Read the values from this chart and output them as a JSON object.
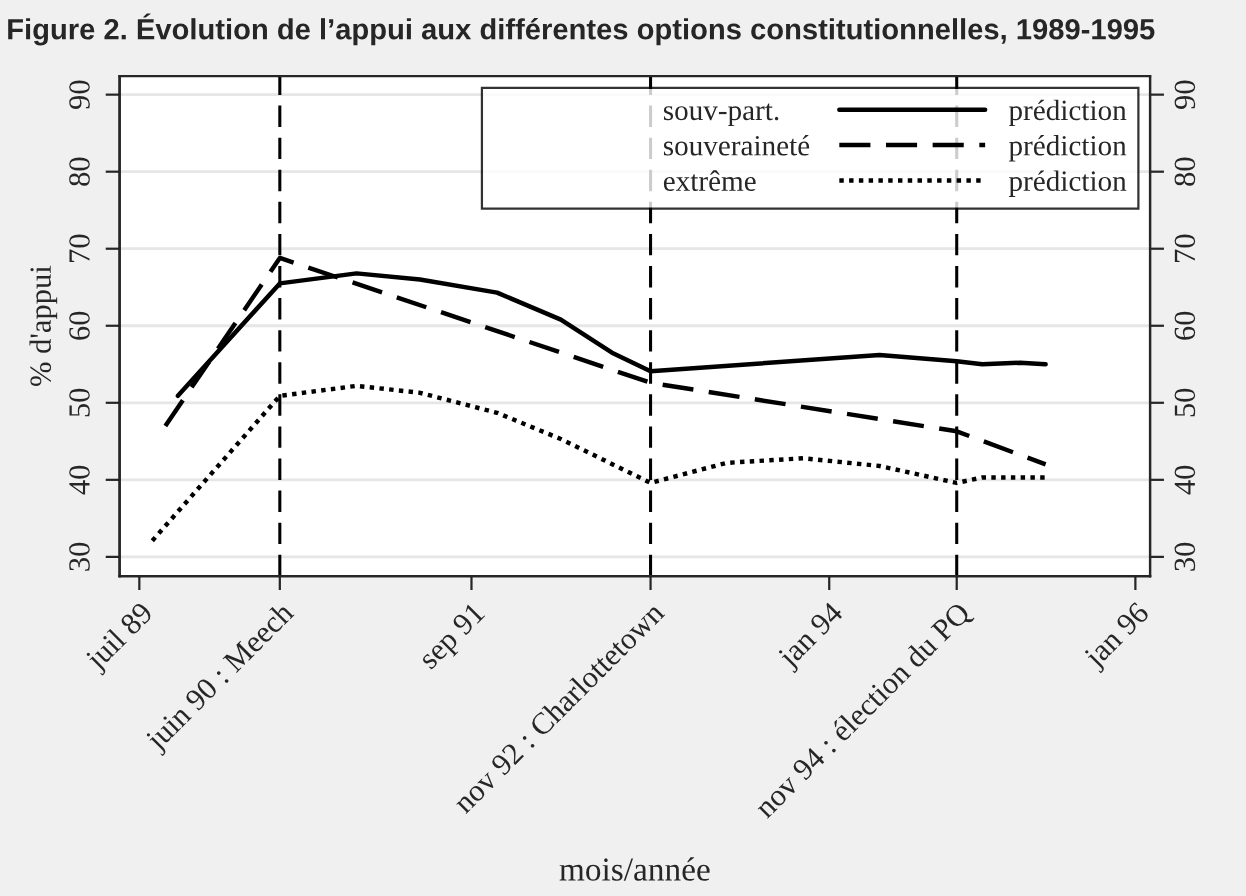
{
  "chart_data": {
    "type": "line",
    "title": "Figure 2. Évolution de l’appui aux différentes options constitutionnelles, 1989-1995",
    "xlabel": "mois/année",
    "ylabel": "% d'appui",
    "series": [
      {
        "name": "prédiction",
        "color": "#000000",
        "line_style": "solid",
        "x": [
          "1989-10",
          "1990-06",
          "1990-12",
          "1991-05",
          "1991-11",
          "1992-04",
          "1992-08",
          "1992-11",
          "1994-05",
          "1994-11",
          "1995-01",
          "1995-04",
          "1995-06"
        ],
        "values": [
          50.9,
          65.5,
          66.8,
          66.0,
          64.3,
          60.8,
          56.5,
          54.1,
          56.2,
          55.4,
          55.0,
          55.2,
          55.0
        ]
      },
      {
        "name": "prédiction",
        "color": "#000000",
        "line_style": "dashed",
        "x": [
          "1989-09",
          "1990-06",
          "1992-11",
          "1994-11",
          "1995-06"
        ],
        "values": [
          47.0,
          68.8,
          52.6,
          46.3,
          42.0
        ]
      },
      {
        "name": "prédiction",
        "color": "#000000",
        "line_style": "dotted",
        "x": [
          "1989-08",
          "1990-06",
          "1990-12",
          "1991-05",
          "1991-11",
          "1992-04",
          "1992-11",
          "1993-05",
          "1993-11",
          "1994-05",
          "1994-11",
          "1995-01",
          "1995-06"
        ],
        "values": [
          32.1,
          50.9,
          52.2,
          51.3,
          48.7,
          45.3,
          39.6,
          42.2,
          42.8,
          41.8,
          39.6,
          40.3,
          40.3
        ]
      }
    ],
    "annotations": [
      "souv-part.",
      "souveraineté",
      "extrême"
    ],
    "xlim": [
      "1989-05-15",
      "1996-02-05"
    ],
    "xticks": [
      {
        "value": "1989-07",
        "label": "juil 89"
      },
      {
        "value": "1990-06",
        "label": "juin 90 : Meech"
      },
      {
        "value": "1991-09",
        "label": "sep 91"
      },
      {
        "value": "1992-11",
        "label": "nov 92 : Charlottetown"
      },
      {
        "value": "1994-01",
        "label": "jan 94"
      },
      {
        "value": "1994-11",
        "label": "nov 94 : élection du PQ"
      },
      {
        "value": "1996-01",
        "label": "jan 96"
      }
    ],
    "ylim": [
      27.5,
      92.4
    ],
    "yticks": [
      30,
      40,
      50,
      60,
      70,
      80,
      90
    ],
    "y2lim": [
      27.5,
      92.4
    ],
    "y2ticks": [
      30,
      40,
      50,
      60,
      70,
      80,
      90
    ],
    "ref_lines": [
      {
        "axis": "x",
        "value": "1990-06",
        "color": "#000000",
        "line_style": "dashed"
      },
      {
        "axis": "x",
        "value": "1992-11",
        "color": "#000000",
        "line_style": "dashed"
      },
      {
        "axis": "x",
        "value": "1994-11",
        "color": "#000000",
        "line_style": "dashed"
      }
    ],
    "grid": "y",
    "legend": "top right"
  }
}
